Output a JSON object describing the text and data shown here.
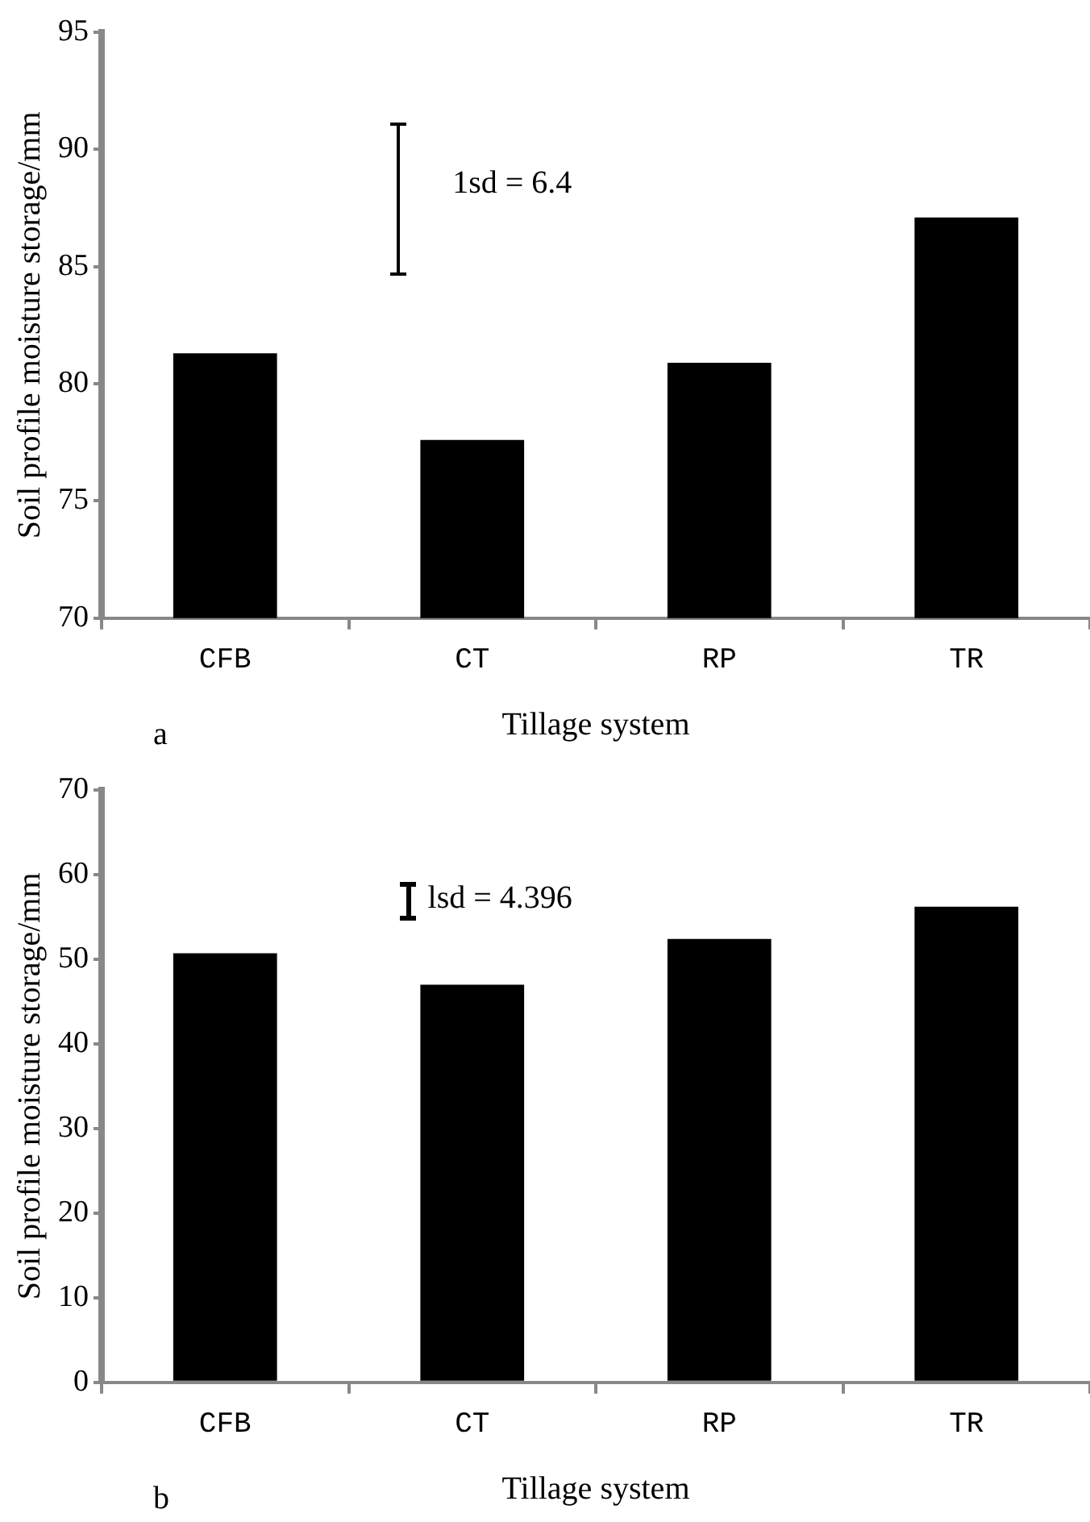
{
  "chart_data": [
    {
      "type": "bar",
      "categories": [
        "CFB",
        "CT",
        "RP",
        "TR"
      ],
      "values": [
        81.3,
        77.6,
        80.9,
        87.1
      ],
      "color": "#000000",
      "xlabel": "Tillage system",
      "ylabel": "Soil profile moisture storage/mm",
      "ylim": [
        70,
        95
      ],
      "yticks": [
        70,
        75,
        80,
        85,
        90,
        95
      ],
      "grid": false,
      "legend": false,
      "annotations": [
        "1sd = 6.4",
        "a"
      ]
    },
    {
      "type": "bar",
      "categories": [
        "CFB",
        "CT",
        "RP",
        "TR"
      ],
      "values": [
        50.7,
        47.0,
        52.4,
        56.2
      ],
      "color": "#000000",
      "xlabel": "Tillage system",
      "ylabel": "Soil profile moisture storage/mm",
      "ylim": [
        0,
        70
      ],
      "yticks": [
        0,
        10,
        20,
        30,
        40,
        50,
        60,
        70
      ],
      "grid": false,
      "legend": false,
      "annotations": [
        "lsd = 4.396",
        "b"
      ]
    }
  ]
}
